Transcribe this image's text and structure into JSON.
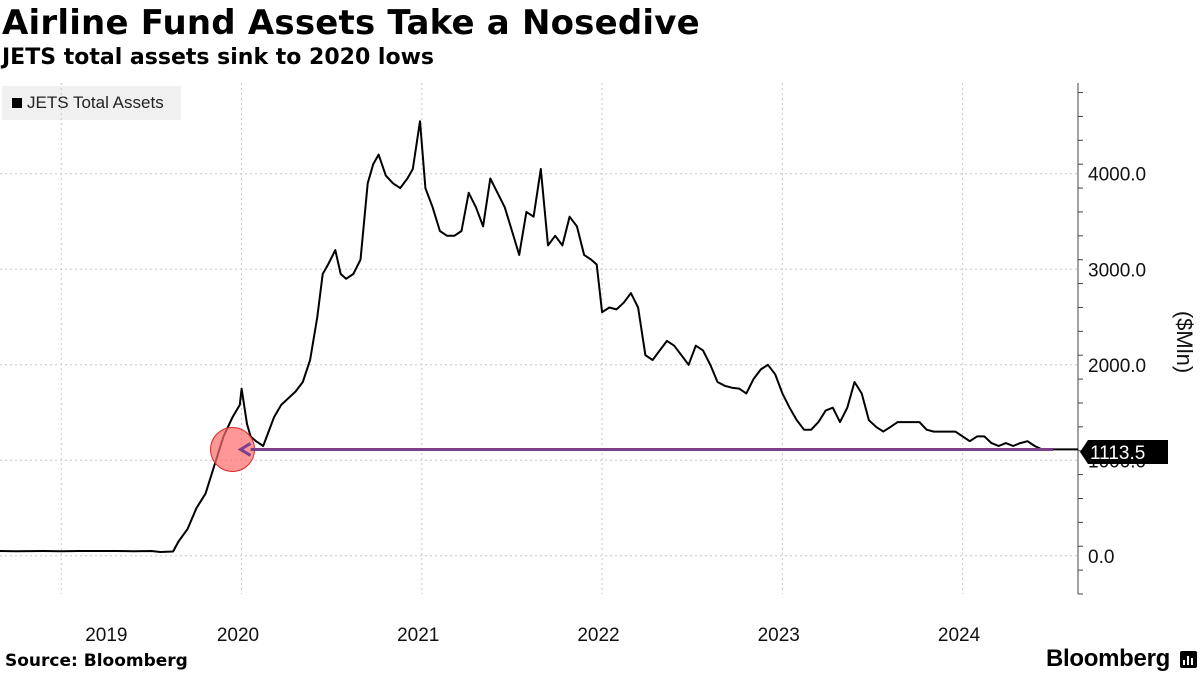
{
  "header": {
    "title": "Airline Fund Assets Take a Nosedive",
    "subtitle": "JETS total assets sink to 2020 lows"
  },
  "footer": {
    "source": "Source: Bloomberg",
    "brand": "Bloomberg",
    "brand_icon": "bloomberg-terminal-icon"
  },
  "colors": {
    "line": "#000000",
    "reference_line": "#7b3f8c",
    "highlight_circle": "#ff6b6b",
    "grid": "#c8c8c8",
    "legend_bg": "#f0f0f0"
  },
  "chart_data": {
    "type": "line",
    "title": "Airline Fund Assets Take a Nosedive",
    "subtitle": "JETS total assets sink to 2020 lows",
    "ylabel": "($Mln)",
    "xlabel": "",
    "ylim": [
      -400,
      4950
    ],
    "y_ticks": [
      0,
      1000,
      2000,
      3000,
      4000
    ],
    "y_tick_labels": [
      "0.0",
      "1000.0",
      "2000.0",
      "3000.0",
      "4000.0"
    ],
    "x_range": [
      2018.66,
      2024.64
    ],
    "x_ticks": [
      2019,
      2020,
      2021,
      2022,
      2023,
      2024
    ],
    "x_tick_labels": [
      "2019",
      "2020",
      "2021",
      "2022",
      "2023",
      "2024"
    ],
    "grid": true,
    "legend_position": "top-left",
    "series": [
      {
        "name": "JETS Total Assets",
        "x": [
          2018.66,
          2018.75,
          2018.9,
          2019.0,
          2019.1,
          2019.2,
          2019.3,
          2019.4,
          2019.5,
          2019.55,
          2019.62,
          2019.65,
          2019.7,
          2019.75,
          2019.8,
          2019.85,
          2019.9,
          2019.95,
          2019.99,
          2020.0,
          2020.03,
          2020.05,
          2020.08,
          2020.12,
          2020.15,
          2020.18,
          2020.22,
          2020.26,
          2020.3,
          2020.34,
          2020.38,
          2020.42,
          2020.45,
          2020.48,
          2020.52,
          2020.55,
          2020.58,
          2020.62,
          2020.66,
          2020.7,
          2020.73,
          2020.76,
          2020.8,
          2020.84,
          2020.88,
          2020.92,
          2020.95,
          2020.99,
          2021.02,
          2021.06,
          2021.1,
          2021.14,
          2021.18,
          2021.22,
          2021.26,
          2021.3,
          2021.34,
          2021.38,
          2021.42,
          2021.46,
          2021.5,
          2021.54,
          2021.58,
          2021.62,
          2021.66,
          2021.7,
          2021.74,
          2021.78,
          2021.82,
          2021.86,
          2021.9,
          2021.94,
          2021.97,
          2022.0,
          2022.04,
          2022.08,
          2022.12,
          2022.16,
          2022.2,
          2022.24,
          2022.28,
          2022.32,
          2022.36,
          2022.4,
          2022.44,
          2022.48,
          2022.52,
          2022.56,
          2022.6,
          2022.64,
          2022.68,
          2022.72,
          2022.76,
          2022.8,
          2022.84,
          2022.88,
          2022.92,
          2022.96,
          2023.0,
          2023.04,
          2023.08,
          2023.12,
          2023.16,
          2023.2,
          2023.24,
          2023.28,
          2023.32,
          2023.36,
          2023.4,
          2023.44,
          2023.48,
          2023.52,
          2023.56,
          2023.6,
          2023.64,
          2023.68,
          2023.72,
          2023.76,
          2023.8,
          2023.84,
          2023.88,
          2023.92,
          2023.96,
          2024.0,
          2024.04,
          2024.08,
          2024.12,
          2024.16,
          2024.2,
          2024.24,
          2024.28,
          2024.32,
          2024.36,
          2024.4,
          2024.44,
          2024.48,
          2024.52,
          2024.56,
          2024.6,
          2024.64
        ],
        "values": [
          50,
          48,
          50,
          48,
          50,
          50,
          50,
          48,
          50,
          40,
          45,
          150,
          280,
          500,
          650,
          950,
          1250,
          1450,
          1580,
          1750,
          1380,
          1250,
          1200,
          1150,
          1300,
          1450,
          1580,
          1650,
          1720,
          1820,
          2050,
          2500,
          2950,
          3050,
          3200,
          2950,
          2900,
          2950,
          3100,
          3900,
          4100,
          4200,
          3980,
          3900,
          3850,
          3950,
          4050,
          4550,
          3850,
          3650,
          3400,
          3350,
          3350,
          3400,
          3800,
          3650,
          3450,
          3950,
          3800,
          3650,
          3400,
          3150,
          3600,
          3550,
          4050,
          3250,
          3350,
          3250,
          3550,
          3450,
          3150,
          3100,
          3050,
          2550,
          2600,
          2580,
          2650,
          2750,
          2600,
          2100,
          2050,
          2150,
          2250,
          2200,
          2100,
          2000,
          2200,
          2150,
          2000,
          1820,
          1780,
          1760,
          1750,
          1700,
          1850,
          1950,
          2000,
          1900,
          1700,
          1550,
          1420,
          1320,
          1320,
          1400,
          1520,
          1550,
          1400,
          1550,
          1820,
          1700,
          1420,
          1350,
          1300,
          1350,
          1400,
          1400,
          1400,
          1400,
          1320,
          1300,
          1300,
          1300,
          1300,
          1250,
          1200,
          1250,
          1250,
          1180,
          1150,
          1180,
          1150,
          1180,
          1200,
          1150,
          1113.5,
          1113.5,
          1113.5,
          1113.5,
          1113.5,
          1113.5
        ],
        "last_value_label": "1113.5",
        "color": "#000000"
      }
    ],
    "reference_line": {
      "y": 1113.5,
      "x_start": 2020.05,
      "x_end": 2024.64
    },
    "highlight": {
      "x": 2019.95,
      "y": 1113.5
    }
  }
}
